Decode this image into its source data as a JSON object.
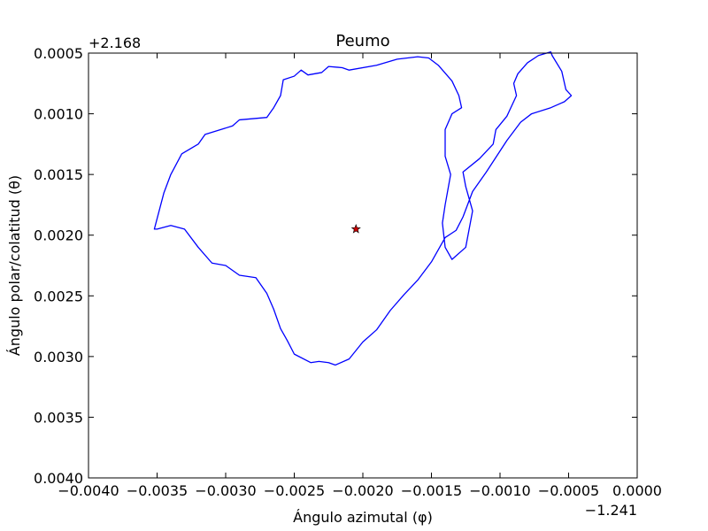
{
  "chart_data": {
    "type": "line",
    "title": "Peumo",
    "xlabel": "Ángulo azimutal (φ)",
    "ylabel": "Ángulo polar/colatitud (θ)",
    "x_offset_label": "−1.241",
    "y_offset_label": "+2.168",
    "xlim": [
      -0.004,
      0.0
    ],
    "ylim": [
      0.004,
      0.0005
    ],
    "y_inverted": true,
    "x_ticks": [
      -0.004,
      -0.0035,
      -0.003,
      -0.0025,
      -0.002,
      -0.0015,
      -0.001,
      -0.0005,
      0.0
    ],
    "x_tick_labels": [
      "−0.0040",
      "−0.0035",
      "−0.0030",
      "−0.0025",
      "−0.0020",
      "−0.0015",
      "−0.0010",
      "−0.0005",
      "0.0000"
    ],
    "y_ticks": [
      0.0005,
      0.001,
      0.0015,
      0.002,
      0.0025,
      0.003,
      0.0035,
      0.004
    ],
    "y_tick_labels": [
      "0.0005",
      "0.0010",
      "0.0015",
      "0.0020",
      "0.0025",
      "0.0030",
      "0.0035",
      "0.0040"
    ],
    "grid": false,
    "series": [
      {
        "color": "#0000ff",
        "closed": true,
        "x": [
          -0.00352,
          -0.00345,
          -0.0034,
          -0.00332,
          -0.0032,
          -0.00315,
          -0.00295,
          -0.0029,
          -0.0027,
          -0.00265,
          -0.0026,
          -0.00258,
          -0.0025,
          -0.00245,
          -0.0024,
          -0.0023,
          -0.00225,
          -0.00215,
          -0.0021,
          -0.0019,
          -0.00175,
          -0.0016,
          -0.00152,
          -0.00145,
          -0.00135,
          -0.0013,
          -0.00128,
          -0.00135,
          -0.0014,
          -0.0014,
          -0.00136,
          -0.0014,
          -0.00142,
          -0.0014,
          -0.00135,
          -0.00125,
          -0.0012,
          -0.00125,
          -0.00127,
          -0.00115,
          -0.00105,
          -0.00103,
          -0.00095,
          -0.00088,
          -0.0009,
          -0.00087,
          -0.0008,
          -0.00072,
          -0.00063,
          -0.00062,
          -0.00055,
          -0.00052,
          -0.00048,
          -0.00053,
          -0.00063,
          -0.00077,
          -0.00085,
          -0.00095,
          -0.0011,
          -0.0012,
          -0.00127,
          -0.00132,
          -0.0014,
          -0.0015,
          -0.0016,
          -0.0017,
          -0.0018,
          -0.0019,
          -0.002,
          -0.0021,
          -0.0022,
          -0.00225,
          -0.00232,
          -0.00238,
          -0.0025,
          -0.00255,
          -0.0026,
          -0.00265,
          -0.0027,
          -0.00278,
          -0.0029,
          -0.003,
          -0.0031,
          -0.0032,
          -0.0033,
          -0.0034,
          -0.0035
        ],
        "y": [
          0.00195,
          0.00165,
          0.0015,
          0.00133,
          0.00125,
          0.00117,
          0.0011,
          0.00105,
          0.00103,
          0.00095,
          0.00085,
          0.00072,
          0.00069,
          0.00064,
          0.00068,
          0.00066,
          0.00061,
          0.00062,
          0.00064,
          0.0006,
          0.00055,
          0.00053,
          0.00054,
          0.0006,
          0.00073,
          0.00085,
          0.00095,
          0.001,
          0.00113,
          0.00135,
          0.0015,
          0.00175,
          0.0019,
          0.0021,
          0.0022,
          0.0021,
          0.0018,
          0.0016,
          0.00148,
          0.00137,
          0.00125,
          0.00113,
          0.00102,
          0.00085,
          0.00075,
          0.00067,
          0.00058,
          0.00052,
          0.00049,
          0.00052,
          0.00065,
          0.0008,
          0.00085,
          0.0009,
          0.00095,
          0.001,
          0.00107,
          0.00122,
          0.00148,
          0.00164,
          0.00185,
          0.00196,
          0.00202,
          0.00222,
          0.00237,
          0.00249,
          0.00262,
          0.00278,
          0.00288,
          0.00302,
          0.00307,
          0.00305,
          0.00304,
          0.00305,
          0.00298,
          0.00287,
          0.00277,
          0.00261,
          0.00248,
          0.00235,
          0.00233,
          0.00225,
          0.00223,
          0.0021,
          0.00195,
          0.00192,
          0.00195
        ]
      },
      {
        "type": "scatter",
        "marker": "star",
        "color": "#cc0000",
        "x": [
          -0.00205
        ],
        "y": [
          0.00195
        ]
      }
    ]
  }
}
